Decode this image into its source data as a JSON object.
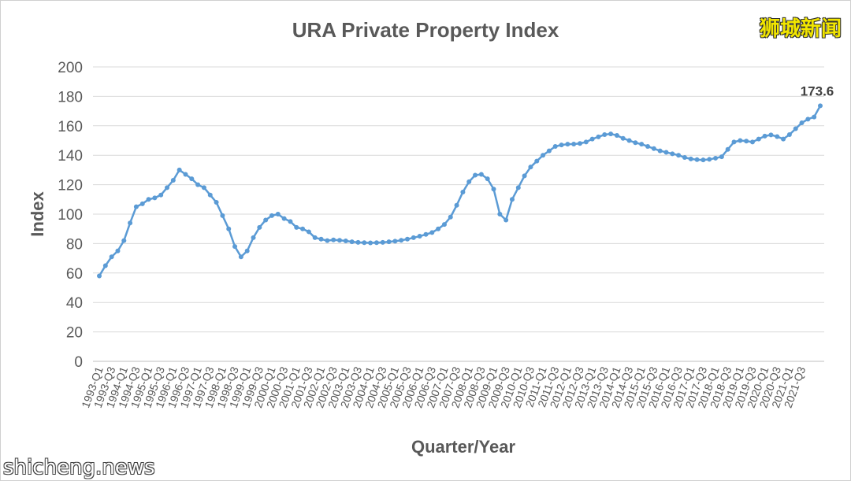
{
  "watermark_cn": "狮城新闻",
  "watermark_site": "shicheng.news",
  "chart_data": {
    "type": "line",
    "title": "URA Private Property Index",
    "xlabel": "Quarter/Year",
    "ylabel": "Index",
    "ylim": [
      0,
      200
    ],
    "yticks": [
      0,
      20,
      40,
      60,
      80,
      100,
      120,
      140,
      160,
      180,
      200
    ],
    "grid": true,
    "legend": "none",
    "color": "#5b9bd5",
    "tick_labels": [
      "1993-Q1",
      "1993-Q3",
      "1994-Q1",
      "1994-Q3",
      "1995-Q1",
      "1995-Q3",
      "1996-Q1",
      "1996-Q3",
      "1997-Q1",
      "1997-Q3",
      "1998-Q1",
      "1998-Q3",
      "1999-Q1",
      "1999-Q3",
      "2000-Q1",
      "2000-Q3",
      "2001-Q1",
      "2001-Q3",
      "2002-Q1",
      "2002-Q3",
      "2003-Q1",
      "2003-Q3",
      "2004-Q1",
      "2004-Q3",
      "2005-Q1",
      "2005-Q3",
      "2006-Q1",
      "2006-Q3",
      "2007-Q1",
      "2007-Q3",
      "2008-Q1",
      "2008-Q3",
      "2009-Q1",
      "2009-Q3",
      "2010-Q1",
      "2010-Q3",
      "2011-Q1",
      "2011-Q3",
      "2012-Q1",
      "2012-Q3",
      "2013-Q1",
      "2013-Q3",
      "2014-Q1",
      "2014-Q3",
      "2015-Q1",
      "2015-Q3",
      "2016-Q1",
      "2016-Q3",
      "2017-Q1",
      "2017-Q3",
      "2018-Q1",
      "2018-Q3",
      "2019-Q1",
      "2019-Q3",
      "2020-Q1",
      "2020-Q3",
      "2021-Q1",
      "2021-Q3"
    ],
    "values": [
      58,
      65,
      71,
      75,
      82,
      94,
      105,
      107,
      110,
      111,
      113,
      118,
      123,
      130,
      127,
      124,
      120,
      118,
      113,
      108,
      99,
      90,
      78,
      71,
      75,
      84,
      91,
      96,
      99,
      100,
      97,
      95,
      91,
      90,
      88,
      84,
      83,
      82,
      82.5,
      82.2,
      81.8,
      81.2,
      80.8,
      80.6,
      80.5,
      80.6,
      80.8,
      81.2,
      81.6,
      82.2,
      83,
      84,
      85,
      86.2,
      87.5,
      90,
      93,
      98,
      106,
      115,
      122,
      126.5,
      127,
      124,
      117,
      100,
      96,
      110,
      118,
      126,
      132,
      136,
      140,
      143,
      146,
      147,
      147.5,
      147.6,
      148,
      149,
      151,
      152.5,
      154,
      154.5,
      153.5,
      151.5,
      150,
      148.5,
      147.5,
      146,
      144.5,
      143,
      142,
      141,
      140,
      138.5,
      137.5,
      137,
      136.8,
      137.2,
      138,
      139,
      144,
      149,
      150,
      149.6,
      149,
      151,
      153,
      153.8,
      152.7,
      151,
      154,
      158,
      162,
      164.5,
      166,
      173.6
    ],
    "annotations": [
      {
        "label": "173.6"
      }
    ]
  }
}
